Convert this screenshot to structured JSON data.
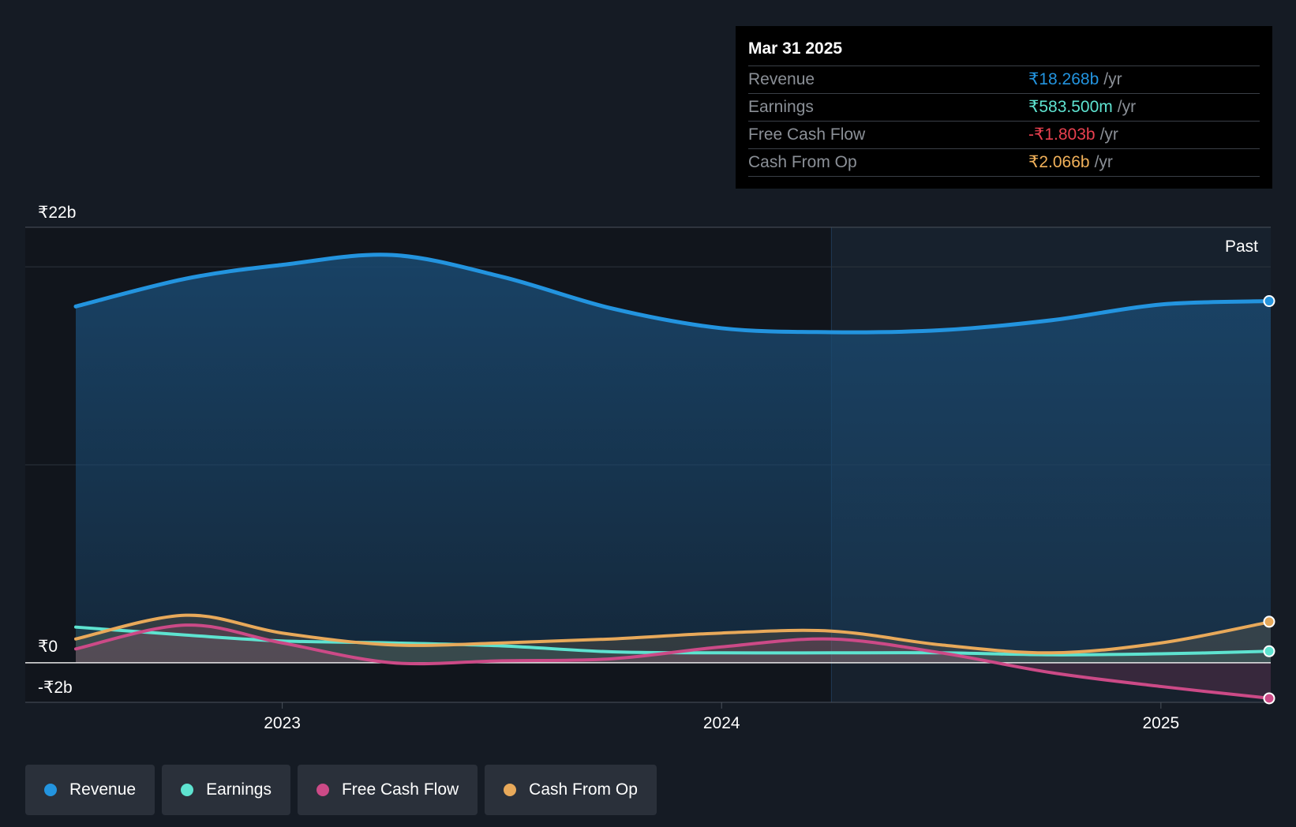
{
  "tooltip": {
    "date": "Mar 31 2025",
    "rows": [
      {
        "label": "Revenue",
        "value": "₹18.268b",
        "unit": "/yr",
        "color": "#2394df"
      },
      {
        "label": "Earnings",
        "value": "₹583.500m",
        "unit": "/yr",
        "color": "#5ee3d0"
      },
      {
        "label": "Free Cash Flow",
        "value": "-₹1.803b",
        "unit": "/yr",
        "color": "#e8404f"
      },
      {
        "label": "Cash From Op",
        "value": "₹2.066b",
        "unit": "/yr",
        "color": "#f1b15a"
      }
    ]
  },
  "past_label": "Past",
  "legend": [
    {
      "label": "Revenue",
      "color": "#2394df"
    },
    {
      "label": "Earnings",
      "color": "#5ee3d0"
    },
    {
      "label": "Free Cash Flow",
      "color": "#cc4a87"
    },
    {
      "label": "Cash From Op",
      "color": "#e8a95a"
    }
  ],
  "chart_data": {
    "type": "area",
    "y_ticks": [
      {
        "value": 22,
        "label": "₹22b"
      },
      {
        "value": 0,
        "label": "₹0"
      },
      {
        "value": -2,
        "label": "-₹2b"
      }
    ],
    "ylim": [
      -2,
      22
    ],
    "xlim": [
      2022.4,
      2025.25
    ],
    "x_ticks": [
      {
        "value": 2023.0,
        "label": "2023"
      },
      {
        "value": 2024.0,
        "label": "2024"
      },
      {
        "value": 2025.0,
        "label": "2025"
      }
    ],
    "past_start": 2024.25,
    "series": [
      {
        "name": "Revenue",
        "color": "#2394df",
        "x": [
          2022.53,
          2022.78,
          2023.0,
          2023.25,
          2023.5,
          2023.75,
          2024.0,
          2024.25,
          2024.5,
          2024.75,
          2025.0,
          2025.25
        ],
        "values": [
          18.0,
          19.4,
          20.1,
          20.6,
          19.5,
          17.9,
          16.9,
          16.7,
          16.8,
          17.3,
          18.1,
          18.27
        ]
      },
      {
        "name": "Earnings",
        "color": "#5ee3d0",
        "x": [
          2022.53,
          2022.78,
          2023.0,
          2023.25,
          2023.5,
          2023.75,
          2024.0,
          2024.25,
          2024.5,
          2024.75,
          2025.0,
          2025.25
        ],
        "values": [
          1.8,
          1.4,
          1.1,
          1.0,
          0.85,
          0.55,
          0.5,
          0.5,
          0.5,
          0.4,
          0.45,
          0.58
        ]
      },
      {
        "name": "Free Cash Flow",
        "color": "#cc4a87",
        "x": [
          2022.53,
          2022.78,
          2023.0,
          2023.25,
          2023.5,
          2023.75,
          2024.0,
          2024.25,
          2024.5,
          2024.75,
          2025.0,
          2025.25
        ],
        "values": [
          0.7,
          1.9,
          1.0,
          0.0,
          0.1,
          0.2,
          0.8,
          1.2,
          0.5,
          -0.5,
          -1.2,
          -1.8
        ]
      },
      {
        "name": "Cash From Op",
        "color": "#e8a95a",
        "x": [
          2022.53,
          2022.78,
          2023.0,
          2023.25,
          2023.5,
          2023.75,
          2024.0,
          2024.25,
          2024.5,
          2024.75,
          2025.0,
          2025.25
        ],
        "values": [
          1.2,
          2.4,
          1.5,
          0.9,
          1.0,
          1.2,
          1.5,
          1.6,
          0.9,
          0.5,
          1.0,
          2.07
        ]
      }
    ]
  }
}
